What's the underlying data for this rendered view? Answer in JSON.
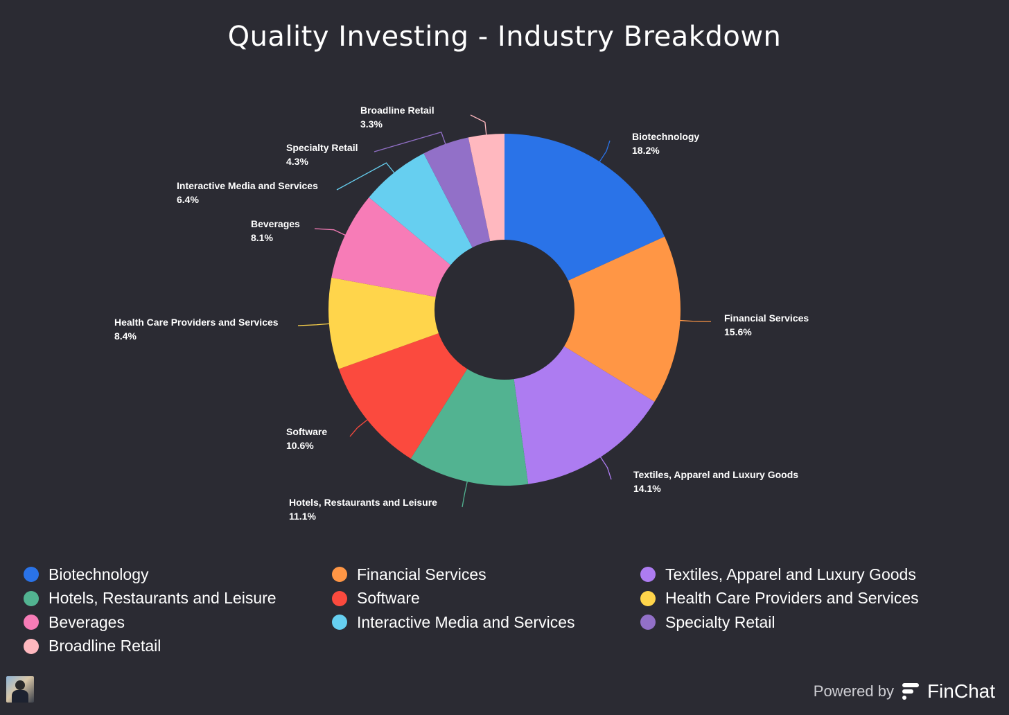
{
  "title": "Quality Investing - Industry Breakdown",
  "chart_data": {
    "type": "pie",
    "donut": true,
    "title": "Quality Investing - Industry Breakdown",
    "legend_position": "bottom",
    "series": [
      {
        "name": "Biotechnology",
        "value": 18.2,
        "label": "18.2%",
        "color": "#2a73e8"
      },
      {
        "name": "Financial Services",
        "value": 15.6,
        "label": "15.6%",
        "color": "#ff9645"
      },
      {
        "name": "Textiles, Apparel and Luxury Goods",
        "value": 14.1,
        "label": "14.1%",
        "color": "#ad7cf1"
      },
      {
        "name": "Hotels, Restaurants and Leisure",
        "value": 11.1,
        "label": "11.1%",
        "color": "#52b391"
      },
      {
        "name": "Software",
        "value": 10.6,
        "label": "10.6%",
        "color": "#fb4a3e"
      },
      {
        "name": "Health Care Providers and Services",
        "value": 8.4,
        "label": "8.4%",
        "color": "#ffd54b"
      },
      {
        "name": "Beverages",
        "value": 8.1,
        "label": "8.1%",
        "color": "#f77cb7"
      },
      {
        "name": "Interactive Media and Services",
        "value": 6.4,
        "label": "6.4%",
        "color": "#66cff0"
      },
      {
        "name": "Specialty Retail",
        "value": 4.3,
        "label": "4.3%",
        "color": "#9270c8"
      },
      {
        "name": "Broadline Retail",
        "value": 3.3,
        "label": "3.3%",
        "color": "#ffb8bf"
      }
    ]
  },
  "legend": [
    {
      "label": "Biotechnology",
      "color": "#2a73e8"
    },
    {
      "label": "Financial Services",
      "color": "#ff9645"
    },
    {
      "label": "Textiles, Apparel and Luxury Goods",
      "color": "#ad7cf1"
    },
    {
      "label": "Hotels, Restaurants and Leisure",
      "color": "#52b391"
    },
    {
      "label": "Software",
      "color": "#fb4a3e"
    },
    {
      "label": "Health Care Providers and Services",
      "color": "#ffd54b"
    },
    {
      "label": "Beverages",
      "color": "#f77cb7"
    },
    {
      "label": "Interactive Media and Services",
      "color": "#66cff0"
    },
    {
      "label": "Specialty Retail",
      "color": "#9270c8"
    },
    {
      "label": "Broadline Retail",
      "color": "#ffb8bf"
    }
  ],
  "branding": {
    "powered_by": "Powered by",
    "brand": "FinChat",
    "logo_icon": "finchat-logo-icon",
    "avatar_icon": "avatar-icon"
  }
}
